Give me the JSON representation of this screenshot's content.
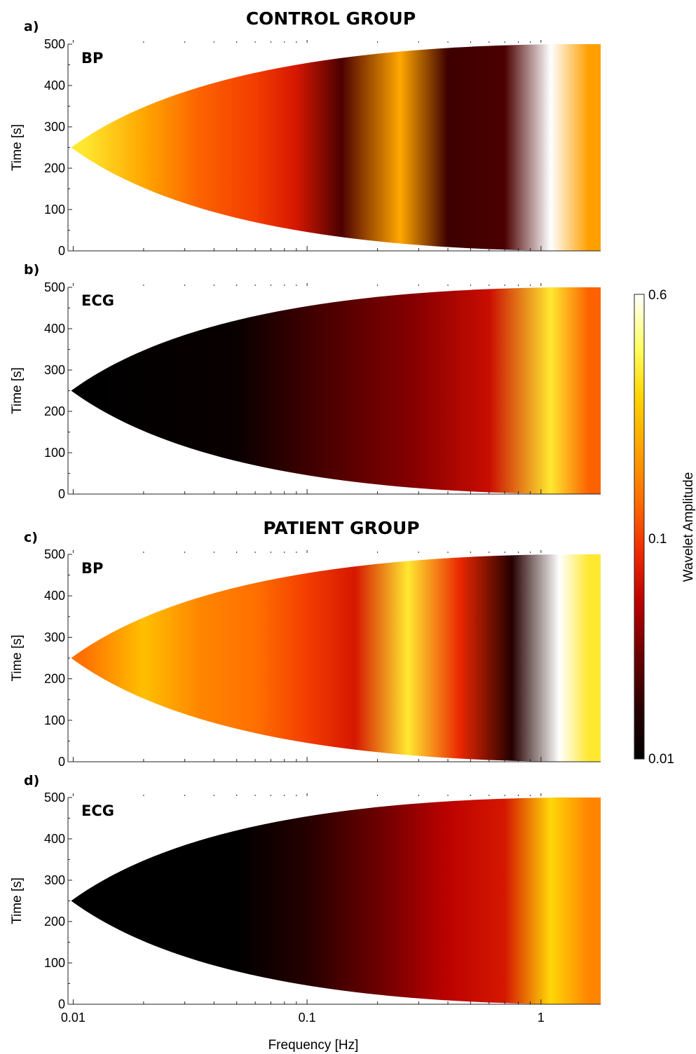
{
  "colors": {
    "colormap": [
      "#000000",
      "#2a0000",
      "#6a0000",
      "#b80000",
      "#ee2a00",
      "#ff6d00",
      "#ffa200",
      "#ffd400",
      "#ffff66",
      "#ffffff"
    ],
    "axis": "#222222",
    "background": "#ffffff"
  },
  "colorbar": {
    "label": "Wavelet Amplitude",
    "scale": "log",
    "ticks": [
      "0.6",
      "0.1",
      "0.01"
    ],
    "tick_values": [
      0.6,
      0.1,
      0.01
    ],
    "range": [
      0.01,
      0.6
    ]
  },
  "chart_data": [
    {
      "type": "heatmap",
      "panel": "a)",
      "group_title": "CONTROL GROUP",
      "signal": "BP",
      "xlabel": "",
      "ylabel": "Time [s]",
      "xscale": "log",
      "xlim": [
        0.0095,
        1.8
      ],
      "ylim": [
        0,
        500
      ],
      "yticks": [
        "0",
        "100",
        "200",
        "300",
        "400",
        "500"
      ],
      "xticks": [],
      "bands": [
        {
          "freq": 0.011,
          "amp": 0.3
        },
        {
          "freq": 0.02,
          "amp": 0.16
        },
        {
          "freq": 0.035,
          "amp": 0.09
        },
        {
          "freq": 0.06,
          "amp": 0.07
        },
        {
          "freq": 0.09,
          "amp": 0.05
        },
        {
          "freq": 0.14,
          "amp": 0.02
        },
        {
          "freq": 0.25,
          "amp": 0.16
        },
        {
          "freq": 0.4,
          "amp": 0.018
        },
        {
          "freq": 0.7,
          "amp": 0.02
        },
        {
          "freq": 1.1,
          "amp": 0.6
        },
        {
          "freq": 1.6,
          "amp": 0.15
        }
      ]
    },
    {
      "type": "heatmap",
      "panel": "b)",
      "group_title": "",
      "signal": "ECG",
      "xlabel": "",
      "ylabel": "Time [s]",
      "xscale": "log",
      "xlim": [
        0.0095,
        1.8
      ],
      "ylim": [
        0,
        500
      ],
      "yticks": [
        "0",
        "100",
        "200",
        "300",
        "400",
        "500"
      ],
      "xticks": [],
      "bands": [
        {
          "freq": 0.011,
          "amp": 0.01
        },
        {
          "freq": 0.05,
          "amp": 0.011
        },
        {
          "freq": 0.1,
          "amp": 0.018
        },
        {
          "freq": 0.15,
          "amp": 0.022
        },
        {
          "freq": 0.3,
          "amp": 0.03
        },
        {
          "freq": 0.6,
          "amp": 0.045
        },
        {
          "freq": 1.1,
          "amp": 0.3
        },
        {
          "freq": 1.6,
          "amp": 0.09
        }
      ]
    },
    {
      "type": "heatmap",
      "panel": "c)",
      "group_title": "PATIENT GROUP",
      "signal": "BP",
      "xlabel": "",
      "ylabel": "Time [s]",
      "xscale": "log",
      "xlim": [
        0.0095,
        1.8
      ],
      "ylim": [
        0,
        500
      ],
      "yticks": [
        "0",
        "100",
        "200",
        "300",
        "400",
        "500"
      ],
      "xticks": [],
      "bands": [
        {
          "freq": 0.011,
          "amp": 0.1
        },
        {
          "freq": 0.02,
          "amp": 0.2
        },
        {
          "freq": 0.035,
          "amp": 0.12
        },
        {
          "freq": 0.06,
          "amp": 0.1
        },
        {
          "freq": 0.1,
          "amp": 0.07
        },
        {
          "freq": 0.16,
          "amp": 0.05
        },
        {
          "freq": 0.27,
          "amp": 0.3
        },
        {
          "freq": 0.45,
          "amp": 0.06
        },
        {
          "freq": 0.75,
          "amp": 0.015
        },
        {
          "freq": 1.2,
          "amp": 0.6
        },
        {
          "freq": 1.6,
          "amp": 0.3
        }
      ]
    },
    {
      "type": "heatmap",
      "panel": "d)",
      "group_title": "",
      "signal": "ECG",
      "xlabel": "Frequency [Hz]",
      "ylabel": "Time [s]",
      "xscale": "log",
      "xlim": [
        0.0095,
        1.8
      ],
      "ylim": [
        0,
        500
      ],
      "yticks": [
        "0",
        "100",
        "200",
        "300",
        "400",
        "500"
      ],
      "xticks": [
        "0.01",
        "0.1",
        "1"
      ],
      "xtick_values": [
        0.01,
        0.1,
        1
      ],
      "bands": [
        {
          "freq": 0.011,
          "amp": 0.01
        },
        {
          "freq": 0.05,
          "amp": 0.01
        },
        {
          "freq": 0.1,
          "amp": 0.015
        },
        {
          "freq": 0.2,
          "amp": 0.025
        },
        {
          "freq": 0.4,
          "amp": 0.04
        },
        {
          "freq": 0.7,
          "amp": 0.05
        },
        {
          "freq": 1.1,
          "amp": 0.25
        },
        {
          "freq": 1.6,
          "amp": 0.12
        }
      ]
    }
  ]
}
